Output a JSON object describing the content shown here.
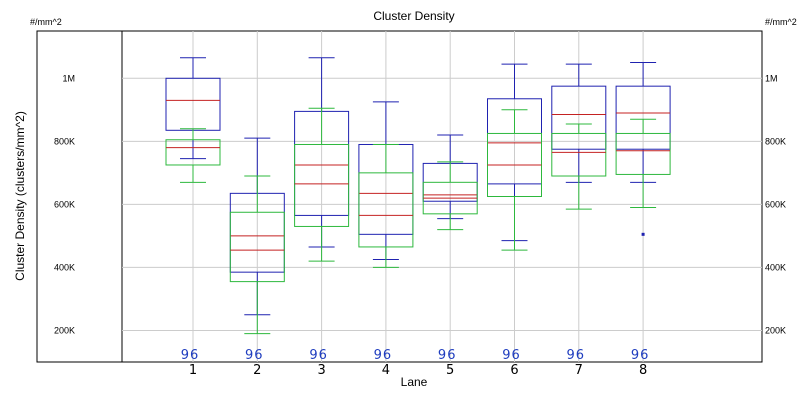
{
  "chart_data": {
    "type": "box",
    "title": "Cluster Density",
    "xlabel": "Lane",
    "ylabel": "Cluster Density (clusters/mm^2)",
    "unit_left": "#/mm^2",
    "unit_right": "#/mm^2",
    "ylim": [
      100000,
      1150000
    ],
    "y_ticks": [
      200000,
      400000,
      600000,
      800000,
      1000000
    ],
    "y_tick_labels": [
      "200K",
      "400K",
      "600K",
      "800K",
      "1M"
    ],
    "grid": true,
    "categories": [
      "1",
      "2",
      "3",
      "4",
      "5",
      "6",
      "7",
      "8"
    ],
    "tile_counts": [
      "96",
      "96",
      "96",
      "96",
      "96",
      "96",
      "96",
      "96"
    ],
    "colors": {
      "raw": "#1f22b0",
      "pf": "#2db83d",
      "median": "#c42222",
      "count": "#1f3dbf"
    },
    "series": [
      {
        "color": "#1f22b0",
        "boxes": [
          {
            "min": 745000,
            "q1": 835000,
            "median": 930000,
            "q3": 1000000,
            "max": 1065000
          },
          {
            "min": 250000,
            "q1": 385000,
            "median": 500000,
            "q3": 635000,
            "max": 810000
          },
          {
            "min": 465000,
            "q1": 565000,
            "median": 725000,
            "q3": 895000,
            "max": 1065000
          },
          {
            "min": 425000,
            "q1": 505000,
            "median": 635000,
            "q3": 790000,
            "max": 925000
          },
          {
            "min": 555000,
            "q1": 610000,
            "median": 630000,
            "q3": 730000,
            "max": 820000
          },
          {
            "min": 485000,
            "q1": 665000,
            "median": 795000,
            "q3": 935000,
            "max": 1045000
          },
          {
            "min": 670000,
            "q1": 775000,
            "median": 885000,
            "q3": 975000,
            "max": 1045000
          },
          {
            "min": 670000,
            "q1": 775000,
            "median": 890000,
            "q3": 975000,
            "max": 1050000
          }
        ],
        "outliers": [
          [],
          [],
          [],
          [],
          [],
          [],
          [],
          [
            505000
          ]
        ]
      },
      {
        "color": "#2db83d",
        "boxes": [
          {
            "min": 670000,
            "q1": 725000,
            "median": 780000,
            "q3": 805000,
            "max": 840000
          },
          {
            "min": 190000,
            "q1": 355000,
            "median": 455000,
            "q3": 575000,
            "max": 690000
          },
          {
            "min": 420000,
            "q1": 530000,
            "median": 665000,
            "q3": 790000,
            "max": 905000
          },
          {
            "min": 400000,
            "q1": 465000,
            "median": 565000,
            "q3": 700000,
            "max": 790000
          },
          {
            "min": 520000,
            "q1": 570000,
            "median": 620000,
            "q3": 670000,
            "max": 735000
          },
          {
            "min": 455000,
            "q1": 625000,
            "median": 725000,
            "q3": 825000,
            "max": 900000
          },
          {
            "min": 585000,
            "q1": 690000,
            "median": 765000,
            "q3": 825000,
            "max": 855000
          },
          {
            "min": 590000,
            "q1": 695000,
            "median": 770000,
            "q3": 825000,
            "max": 870000
          }
        ],
        "outliers": [
          [],
          [],
          [],
          [],
          [],
          [],
          [],
          []
        ]
      }
    ]
  }
}
